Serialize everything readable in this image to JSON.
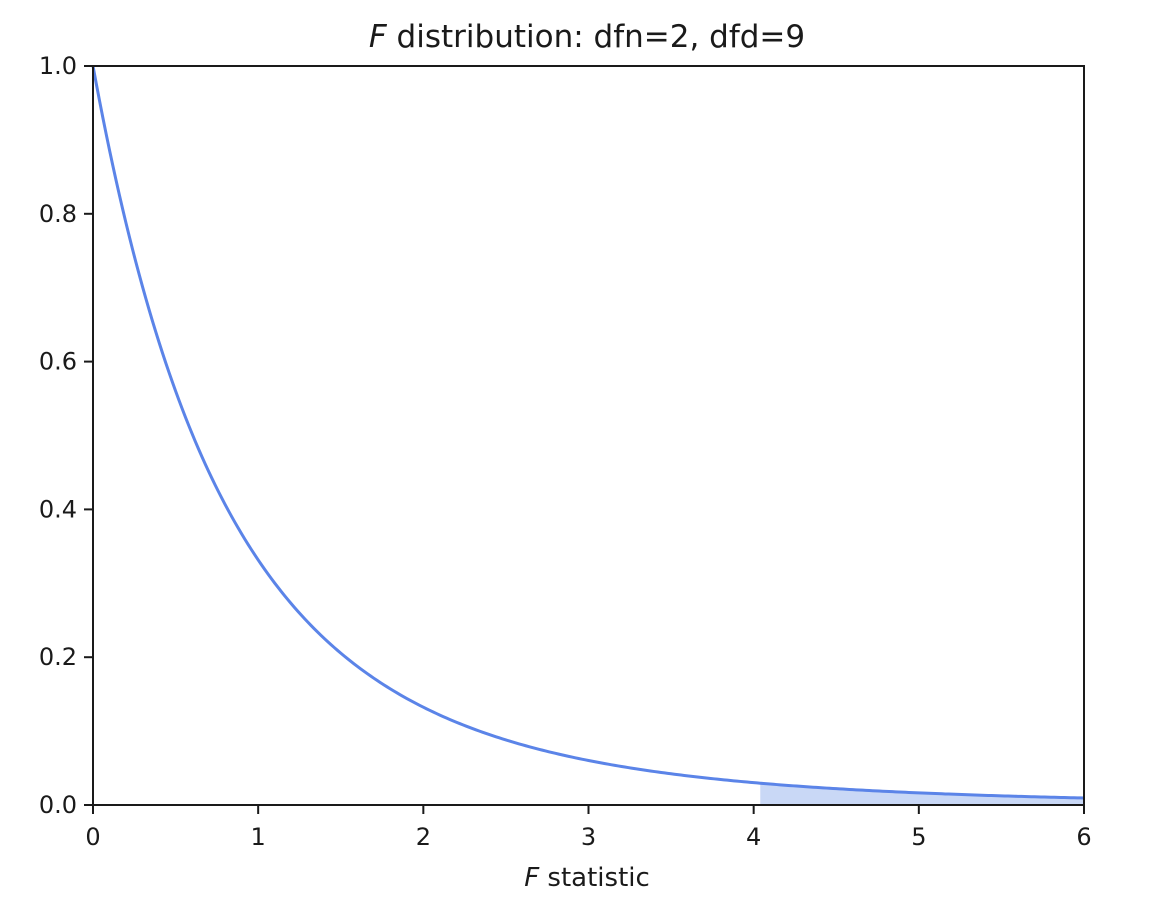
{
  "chart_data": {
    "type": "area",
    "title": {
      "italic": "F",
      "text": " distribution: dfn=2, dfd=9"
    },
    "xlabel": {
      "italic": "F",
      "text": " statistic"
    },
    "ylabel": "",
    "xlim": [
      0,
      6
    ],
    "ylim": [
      0,
      1.0
    ],
    "x_ticks": [
      0,
      1,
      2,
      3,
      4,
      5,
      6
    ],
    "x_tick_labels": [
      "0",
      "1",
      "2",
      "3",
      "4",
      "5",
      "6"
    ],
    "y_ticks": [
      0.0,
      0.2,
      0.4,
      0.6,
      0.8,
      1.0
    ],
    "y_tick_labels": [
      "0.0",
      "0.2",
      "0.4",
      "0.6",
      "0.8",
      "1.0"
    ],
    "grid": false,
    "series": [
      {
        "kind": "line",
        "x": [
          0,
          0.25,
          0.5,
          0.75,
          1.0,
          1.25,
          1.5,
          1.75,
          2.0,
          2.5,
          3.0,
          3.5,
          4.0,
          4.5,
          5.0,
          5.5,
          6.0
        ],
        "y": [
          1.0,
          0.7489,
          0.5705,
          0.4411,
          0.3457,
          0.2741,
          0.2197,
          0.1778,
          0.1452,
          0.0992,
          0.0695,
          0.0498,
          0.0364,
          0.0271,
          0.0205,
          0.0158,
          0.0123
        ],
        "color": "#5b84e8"
      },
      {
        "kind": "shaded_area",
        "x_from": 4.04,
        "x_to": 6.0,
        "color": "#5b84e8",
        "opacity": 0.25
      }
    ],
    "colors": {
      "line": "#5b84e8",
      "fill": "#c9d8f6",
      "axis": "#1a1a1a"
    }
  }
}
